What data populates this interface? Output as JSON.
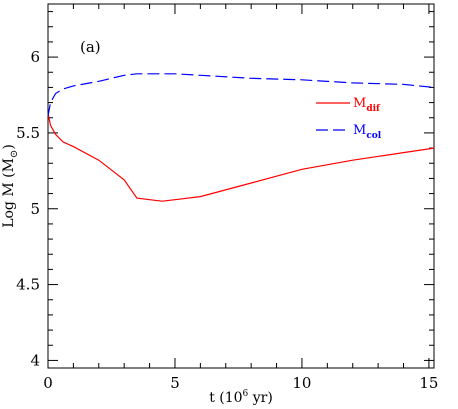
{
  "chart_data": {
    "type": "line",
    "panel_label": "(a)",
    "xlabel": {
      "prefix": "t   (10",
      "sup": "6",
      "suffix": " yr)"
    },
    "ylabel": {
      "main": "Log M  (M",
      "sub": "⊙",
      "close": ")"
    },
    "xlim": [
      0,
      15.2
    ],
    "ylim": [
      3.95,
      6.35
    ],
    "x_ticks": [
      0,
      5,
      10,
      15
    ],
    "x_tick_labels": [
      "0",
      "5",
      "10",
      "15"
    ],
    "y_ticks": [
      4,
      4.5,
      5,
      5.5,
      6
    ],
    "y_tick_labels": [
      "4",
      "4.5",
      "5",
      "5.5",
      "6"
    ],
    "grid": false,
    "legend_position": "upper-right, inside",
    "series": [
      {
        "name": "M",
        "name_sub": "dif",
        "color": "#ff0000",
        "dash": "solid",
        "x": [
          0.0,
          0.1,
          0.3,
          0.6,
          1.0,
          2.0,
          3.0,
          3.5,
          4.0,
          4.5,
          5.0,
          6.0,
          8.0,
          10.0,
          12.0,
          14.0,
          15.2
        ],
        "y": [
          5.63,
          5.55,
          5.49,
          5.44,
          5.41,
          5.32,
          5.19,
          5.07,
          5.06,
          5.05,
          5.06,
          5.08,
          5.17,
          5.26,
          5.32,
          5.37,
          5.4
        ]
      },
      {
        "name": "M",
        "name_sub": "col",
        "color": "#0000ff",
        "dash": "long-dash",
        "x": [
          0.0,
          0.1,
          0.3,
          0.6,
          1.0,
          2.0,
          3.0,
          3.5,
          4.0,
          4.5,
          5.0,
          6.0,
          8.0,
          10.0,
          12.0,
          14.0,
          15.2
        ],
        "y": [
          5.61,
          5.7,
          5.76,
          5.79,
          5.81,
          5.84,
          5.88,
          5.89,
          5.89,
          5.89,
          5.89,
          5.88,
          5.86,
          5.85,
          5.83,
          5.82,
          5.8
        ]
      }
    ]
  }
}
